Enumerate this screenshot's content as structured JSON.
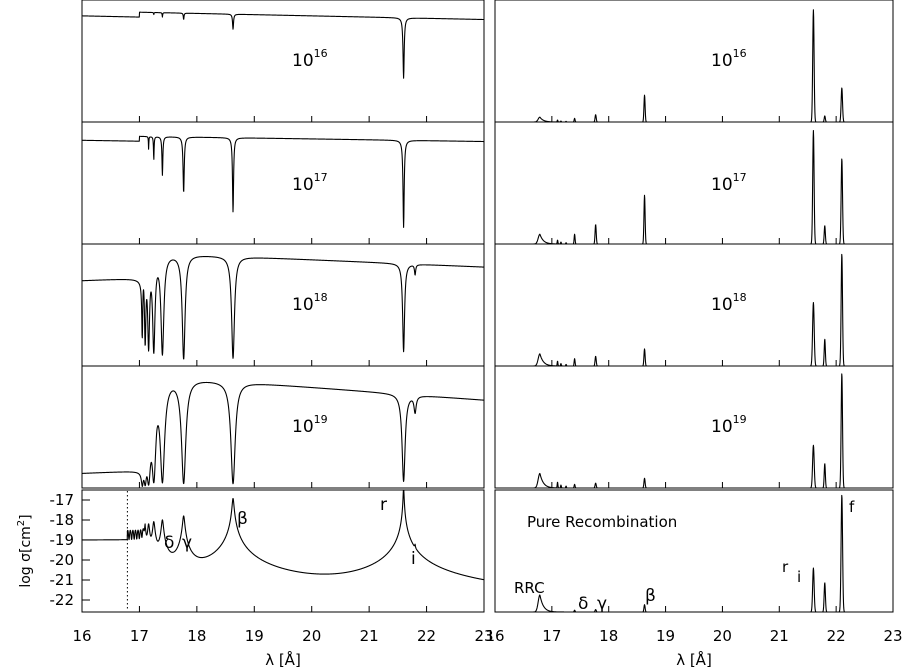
{
  "chart_data": {
    "type": "line",
    "x_range": [
      16,
      23
    ],
    "x_ticks": [
      "16",
      "17",
      "18",
      "19",
      "20",
      "21",
      "22",
      "23"
    ],
    "x_label": "λ [Å]",
    "columns": [
      {
        "panels": [
          {
            "label_base": "10",
            "label_exp": "16"
          },
          {
            "label_base": "10",
            "label_exp": "17"
          },
          {
            "label_base": "10",
            "label_exp": "18"
          },
          {
            "label_base": "10",
            "label_exp": "19"
          }
        ],
        "bottom": {
          "y_label_pre": "log σ[cm",
          "y_label_sup": "2",
          "y_label_post": "]",
          "y_range": [
            -22.6,
            -16.5
          ],
          "y_ticks": [
            "-17",
            "-18",
            "-19",
            "-20",
            "-21",
            "-22"
          ],
          "annotations": [
            "δ",
            "γ",
            "β",
            "r",
            "i"
          ],
          "edge_marker_x": 16.79
        }
      },
      {
        "panels": [
          {
            "label_base": "10",
            "label_exp": "16"
          },
          {
            "label_base": "10",
            "label_exp": "17"
          },
          {
            "label_base": "10",
            "label_exp": "18"
          },
          {
            "label_base": "10",
            "label_exp": "19"
          }
        ],
        "bottom": {
          "title": "Pure Recombination",
          "annotations": [
            "RRC",
            "δ",
            "γ",
            "β",
            "r",
            "i",
            "f"
          ]
        }
      }
    ],
    "lines": {
      "rrc": 16.79,
      "delta": 17.4,
      "gamma": 17.77,
      "beta": 18.63,
      "r": 21.6,
      "i": 21.8,
      "f": 22.1
    }
  }
}
